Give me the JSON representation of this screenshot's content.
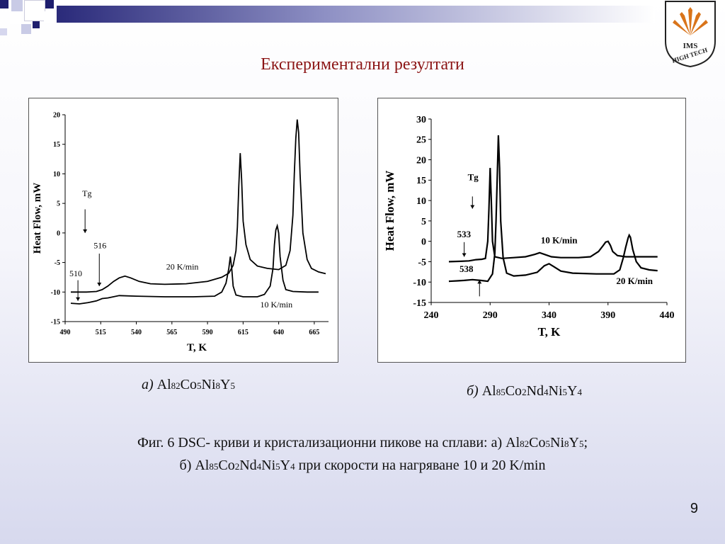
{
  "slide": {
    "title": "Експериментални резултати",
    "page_number": "9",
    "logo_text": [
      "IMS",
      "HIGH TECH"
    ],
    "accent_color": "#8b1414"
  },
  "captions": {
    "a": {
      "prefix": "а)",
      "formula": [
        [
          "Al",
          "82"
        ],
        [
          "Co",
          "5"
        ],
        [
          "Ni",
          "8"
        ],
        [
          "Y",
          "5"
        ]
      ]
    },
    "b": {
      "prefix": "б)",
      "formula": [
        [
          "Al",
          "85"
        ],
        [
          "Co",
          "2"
        ],
        [
          "Nd",
          "4"
        ],
        [
          "Ni",
          "5"
        ],
        [
          "Y",
          "4"
        ]
      ]
    }
  },
  "figure_caption": {
    "line1_text": "Фиг. 6 DSC- криви и кристализационни пикове на сплави: а)",
    "line1_formula": [
      [
        "Al",
        "82"
      ],
      [
        "Co",
        "5"
      ],
      [
        "Ni",
        "8"
      ],
      [
        "Y",
        "5"
      ]
    ],
    "line1_end": ";",
    "line2_prefix": "б)",
    "line2_formula": [
      [
        "Al",
        "85"
      ],
      [
        "Co",
        "2"
      ],
      [
        "Nd",
        "4"
      ],
      [
        "Ni",
        "5"
      ],
      [
        "Y",
        "4"
      ]
    ],
    "line2_text": "при скорости на нагряване 10 и 20 K/min"
  },
  "chart_data": [
    {
      "type": "line",
      "id": "a",
      "xlabel": "T, K",
      "ylabel": "Heat Flow, mW",
      "xlim": [
        490,
        675
      ],
      "ylim": [
        -15,
        20
      ],
      "xticks": [
        490,
        515,
        540,
        565,
        590,
        615,
        640,
        665
      ],
      "yticks": [
        20,
        15,
        10,
        5,
        0,
        -5,
        -10,
        -15
      ],
      "annotations": [
        {
          "text": "Tg",
          "x": 502,
          "y": 6.2
        },
        {
          "text": "516",
          "x": 510,
          "y": -2.6
        },
        {
          "text": "510",
          "x": 493,
          "y": -7.3
        },
        {
          "text": "20 K/min",
          "x": 561,
          "y": -6.2
        },
        {
          "text": "10 K/min",
          "x": 627,
          "y": -12.6
        }
      ],
      "arrows": [
        {
          "x": 504,
          "y_from": 4,
          "y_to": 0
        },
        {
          "x": 514,
          "y_from": -3.5,
          "y_to": -9
        },
        {
          "x": 499,
          "y_from": -8,
          "y_to": -11.5
        }
      ],
      "series": [
        {
          "name": "20 K/min",
          "points": [
            [
              494,
              -10
            ],
            [
              505,
              -10
            ],
            [
              512,
              -9.9
            ],
            [
              516,
              -9.6
            ],
            [
              520,
              -9
            ],
            [
              524,
              -8.2
            ],
            [
              528,
              -7.6
            ],
            [
              532,
              -7.3
            ],
            [
              536,
              -7.6
            ],
            [
              542,
              -8.2
            ],
            [
              550,
              -8.6
            ],
            [
              560,
              -8.7
            ],
            [
              575,
              -8.6
            ],
            [
              590,
              -8.2
            ],
            [
              600,
              -7.5
            ],
            [
              605,
              -6.8
            ],
            [
              608,
              -5.5
            ],
            [
              610,
              -3
            ],
            [
              611,
              1
            ],
            [
              612,
              8
            ],
            [
              613,
              13.5
            ],
            [
              614,
              9
            ],
            [
              615,
              2
            ],
            [
              617,
              -2
            ],
            [
              620,
              -4.5
            ],
            [
              625,
              -5.6
            ],
            [
              632,
              -6
            ],
            [
              640,
              -6.2
            ],
            [
              645,
              -5.5
            ],
            [
              648,
              -3
            ],
            [
              650,
              3
            ],
            [
              651,
              10
            ],
            [
              652,
              16
            ],
            [
              653,
              19.2
            ],
            [
              654,
              17
            ],
            [
              655,
              10
            ],
            [
              657,
              0
            ],
            [
              660,
              -4.5
            ],
            [
              663,
              -6
            ],
            [
              668,
              -6.6
            ],
            [
              673,
              -6.9
            ]
          ]
        },
        {
          "name": "10 K/min",
          "points": [
            [
              494,
              -11.9
            ],
            [
              500,
              -12
            ],
            [
              506,
              -11.8
            ],
            [
              512,
              -11.5
            ],
            [
              516,
              -11.1
            ],
            [
              520,
              -11
            ],
            [
              528,
              -10.6
            ],
            [
              540,
              -10.7
            ],
            [
              560,
              -10.8
            ],
            [
              580,
              -10.8
            ],
            [
              595,
              -10.7
            ],
            [
              600,
              -10
            ],
            [
              603,
              -8.5
            ],
            [
              605,
              -6
            ],
            [
              606,
              -4
            ],
            [
              607,
              -6
            ],
            [
              608,
              -9
            ],
            [
              610,
              -10.5
            ],
            [
              615,
              -10.8
            ],
            [
              625,
              -10.8
            ],
            [
              630,
              -10.4
            ],
            [
              634,
              -9
            ],
            [
              636,
              -6
            ],
            [
              637,
              -2
            ],
            [
              638,
              0.5
            ],
            [
              639,
              1.2
            ],
            [
              640,
              0
            ],
            [
              641,
              -4
            ],
            [
              643,
              -8
            ],
            [
              645,
              -9.6
            ],
            [
              650,
              -9.9
            ],
            [
              660,
              -10
            ],
            [
              668,
              -10
            ]
          ]
        }
      ]
    },
    {
      "type": "line",
      "id": "b",
      "xlabel": "T, K",
      "ylabel": "Heat Flow, mW",
      "xlim": [
        240,
        440
      ],
      "ylim": [
        -15,
        30
      ],
      "xticks": [
        240,
        290,
        340,
        390,
        440
      ],
      "yticks": [
        30,
        25,
        20,
        15,
        10,
        5,
        0,
        -5,
        -10,
        -15
      ],
      "annotations": [
        {
          "text": "Tg",
          "x": 271,
          "y": 15
        },
        {
          "text": "533",
          "x": 262,
          "y": 1
        },
        {
          "text": "538",
          "x": 264,
          "y": -7.5
        },
        {
          "text": "10 K/min",
          "x": 333,
          "y": -0.5
        },
        {
          "text": "20 K/min",
          "x": 397,
          "y": -10.5
        }
      ],
      "arrows": [
        {
          "x": 275,
          "y_from": 11,
          "y_to": 8
        },
        {
          "x": 268,
          "y_from": -0.2,
          "y_to": -3.8
        },
        {
          "x": 281,
          "y_from": -13.5,
          "y_to": -9.5
        }
      ],
      "series": [
        {
          "name": "10 K/min",
          "points": [
            [
              255,
              -5
            ],
            [
              265,
              -4.9
            ],
            [
              272,
              -4.8
            ],
            [
              278,
              -4.5
            ],
            [
              283,
              -4.4
            ],
            [
              286,
              -4.2
            ],
            [
              288,
              0
            ],
            [
              289,
              8
            ],
            [
              290,
              18
            ],
            [
              291,
              10
            ],
            [
              292,
              0
            ],
            [
              294,
              -3.8
            ],
            [
              300,
              -4.2
            ],
            [
              310,
              -4
            ],
            [
              320,
              -3.8
            ],
            [
              328,
              -3.2
            ],
            [
              332,
              -2.8
            ],
            [
              336,
              -3.2
            ],
            [
              342,
              -3.8
            ],
            [
              350,
              -4
            ],
            [
              365,
              -4
            ],
            [
              375,
              -3.8
            ],
            [
              382,
              -2.5
            ],
            [
              386,
              -1
            ],
            [
              388,
              -0.2
            ],
            [
              390,
              0
            ],
            [
              392,
              -1
            ],
            [
              394,
              -2.5
            ],
            [
              398,
              -3.5
            ],
            [
              405,
              -3.8
            ],
            [
              420,
              -3.8
            ],
            [
              432,
              -3.8
            ]
          ]
        },
        {
          "name": "20 K/min",
          "points": [
            [
              255,
              -9.8
            ],
            [
              262,
              -9.7
            ],
            [
              268,
              -9.6
            ],
            [
              275,
              -9.4
            ],
            [
              282,
              -9.6
            ],
            [
              288,
              -9.8
            ],
            [
              292,
              -8
            ],
            [
              294,
              -3
            ],
            [
              295,
              5
            ],
            [
              296,
              15
            ],
            [
              297,
              26
            ],
            [
              298,
              18
            ],
            [
              299,
              5
            ],
            [
              301,
              -4
            ],
            [
              304,
              -7.8
            ],
            [
              310,
              -8.5
            ],
            [
              320,
              -8.3
            ],
            [
              330,
              -7.6
            ],
            [
              336,
              -6
            ],
            [
              340,
              -5.5
            ],
            [
              344,
              -6.2
            ],
            [
              350,
              -7.3
            ],
            [
              360,
              -7.8
            ],
            [
              380,
              -8
            ],
            [
              395,
              -8
            ],
            [
              400,
              -7
            ],
            [
              403,
              -4
            ],
            [
              405,
              -1.5
            ],
            [
              407,
              0.8
            ],
            [
              408,
              1.5
            ],
            [
              409,
              1
            ],
            [
              411,
              -2
            ],
            [
              414,
              -5
            ],
            [
              418,
              -6.5
            ],
            [
              425,
              -7
            ],
            [
              432,
              -7.2
            ]
          ]
        }
      ]
    }
  ]
}
